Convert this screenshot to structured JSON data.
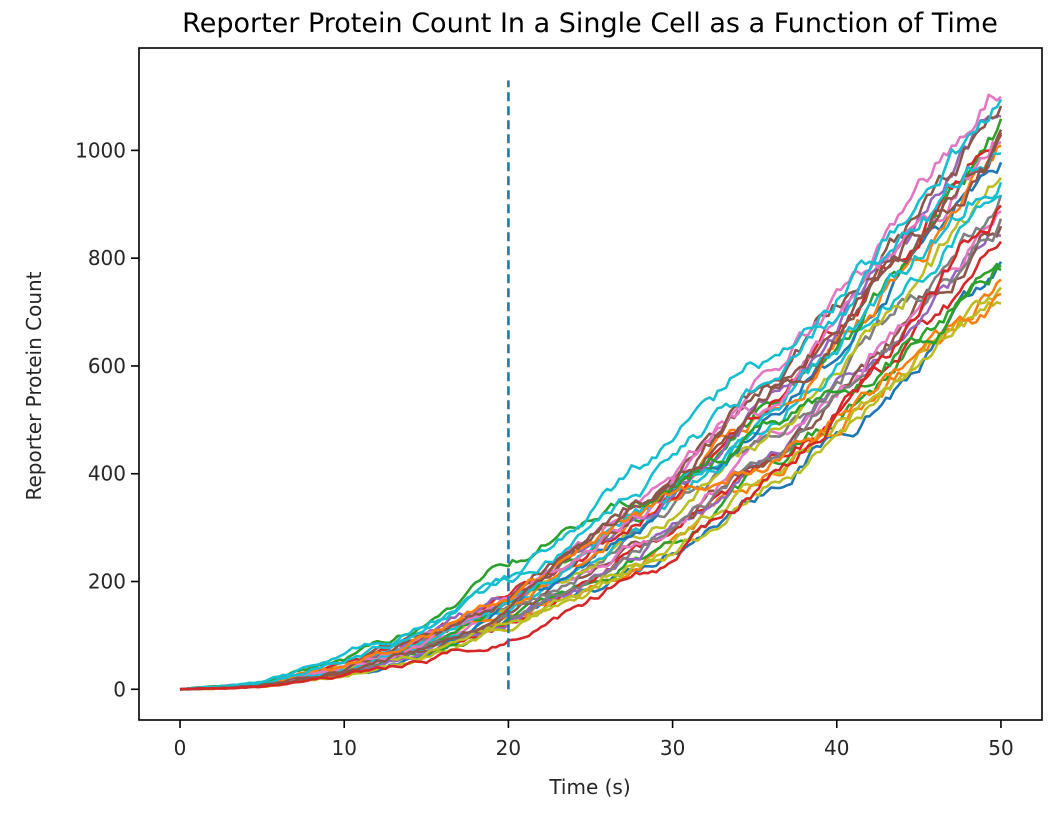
{
  "chart_data": {
    "type": "line",
    "title": "Reporter Protein Count In a Single Cell as a Function of Time",
    "xlabel": "Time (s)",
    "ylabel": "Reporter Protein Count",
    "xlim": [
      -2.5,
      52.5
    ],
    "ylim": [
      -57,
      1190
    ],
    "xticks": [
      0,
      10,
      20,
      30,
      40,
      50
    ],
    "xtick_labels": [
      "0",
      "10",
      "20",
      "30",
      "40",
      "50"
    ],
    "yticks": [
      0,
      200,
      400,
      600,
      800,
      1000
    ],
    "ytick_labels": [
      "0",
      "200",
      "400",
      "600",
      "800",
      "1000"
    ],
    "grid": false,
    "legend": "none",
    "x": [
      0,
      5,
      10,
      15,
      20,
      25,
      30,
      35,
      40,
      45,
      50
    ],
    "vline": {
      "x": 20,
      "y_range": [
        0,
        1130
      ],
      "style": "dashed",
      "color": "#1f77b4"
    },
    "series": [
      {
        "values": [
          0,
          6,
          29,
          67,
          120,
          187,
          270,
          367,
          480,
          607,
          750
        ],
        "color": "#1f77b4"
      },
      {
        "values": [
          0,
          6,
          30,
          69,
          124,
          193,
          278,
          378,
          494,
          626,
          772
        ],
        "color": "#ff7f0e"
      },
      {
        "values": [
          0,
          7,
          31,
          71,
          127,
          199,
          286,
          390,
          509,
          644,
          795
        ],
        "color": "#2ca02c"
      },
      {
        "values": [
          0,
          7,
          32,
          73,
          131,
          205,
          295,
          401,
          523,
          663,
          818
        ],
        "color": "#d62728"
      },
      {
        "values": [
          0,
          7,
          33,
          75,
          134,
          210,
          303,
          412,
          538,
          681,
          841
        ],
        "color": "#9467bd"
      },
      {
        "values": [
          0,
          7,
          34,
          77,
          138,
          216,
          311,
          424,
          553,
          700,
          864
        ],
        "color": "#8c564b"
      },
      {
        "values": [
          0,
          7,
          35,
          79,
          142,
          222,
          319,
          435,
          567,
          718,
          887
        ],
        "color": "#e377c2"
      },
      {
        "values": [
          0,
          7,
          36,
          81,
          145,
          227,
          327,
          446,
          582,
          737,
          910
        ],
        "color": "#7f7f7f"
      },
      {
        "values": [
          0,
          7,
          37,
          83,
          149,
          233,
          336,
          457,
          597,
          755,
          933
        ],
        "color": "#bcbd22"
      },
      {
        "values": [
          0,
          8,
          38,
          85,
          152,
          239,
          344,
          469,
          612,
          774,
          956
        ],
        "color": "#17becf"
      },
      {
        "values": [
          0,
          8,
          39,
          87,
          156,
          244,
          352,
          480,
          626,
          793,
          979
        ],
        "color": "#1f77b4"
      },
      {
        "values": [
          0,
          8,
          40,
          89,
          160,
          250,
          360,
          491,
          641,
          811,
          1002
        ],
        "color": "#ff7f0e"
      },
      {
        "values": [
          0,
          8,
          41,
          91,
          163,
          256,
          368,
          502,
          656,
          830,
          1025
        ],
        "color": "#2ca02c"
      },
      {
        "values": [
          0,
          8,
          42,
          94,
          167,
          262,
          377,
          514,
          670,
          848,
          1048
        ],
        "color": "#d62728"
      },
      {
        "values": [
          0,
          9,
          43,
          96,
          170,
          267,
          385,
          525,
          685,
          867,
          1071
        ],
        "color": "#9467bd"
      },
      {
        "values": [
          0,
          9,
          44,
          98,
          174,
          273,
          393,
          536,
          700,
          885,
          1094
        ],
        "color": "#8c564b"
      },
      {
        "values": [
          0,
          9,
          45,
          100,
          178,
          279,
          401,
          547,
          714,
          904,
          1117
        ],
        "color": "#e377c2"
      },
      {
        "values": [
          0,
          7,
          34,
          78,
          139,
          218,
          313,
          427,
          557,
          705,
          870
        ],
        "color": "#7f7f7f"
      },
      {
        "values": [
          0,
          6,
          30,
          68,
          122,
          190,
          274,
          373,
          487,
          617,
          762
        ],
        "color": "#bcbd22"
      },
      {
        "values": [
          0,
          6,
          29,
          66,
          117,
          183,
          264,
          359,
          469,
          594,
          733
        ],
        "color": "#bcbd22"
      },
      {
        "values": [
          0,
          8,
          39,
          88,
          158,
          247,
          356,
          485,
          634,
          802,
          990
        ],
        "color": "#17becf"
      },
      {
        "values": [
          0,
          8,
          41,
          92,
          164,
          257,
          370,
          505,
          659,
          834,
          1030
        ],
        "color": "#e377c2"
      },
      {
        "values": [
          0,
          9,
          40,
          98,
          176,
          283,
          400,
          545,
          690,
          860,
          1010
        ],
        "color": "#8c564b"
      },
      {
        "values": [
          0,
          10,
          47,
          103,
          183,
          262,
          345,
          428,
          520,
          620,
          720
        ],
        "color": "#ff7f0e"
      },
      {
        "values": [
          0,
          11,
          56,
          120,
          230,
          310,
          370,
          450,
          545,
          660,
          800
        ],
        "color": "#2ca02c"
      },
      {
        "values": [
          0,
          12,
          58,
          125,
          200,
          330,
          470,
          600,
          740,
          900,
          1085
        ],
        "color": "#17becf"
      },
      {
        "values": [
          0,
          11,
          55,
          118,
          190,
          290,
          420,
          560,
          700,
          860,
          1010
        ],
        "color": "#17becf"
      },
      {
        "values": [
          0,
          8,
          37,
          82,
          147,
          260,
          390,
          520,
          660,
          830,
          1000
        ],
        "color": "#8c564b"
      },
      {
        "values": [
          0,
          5,
          24,
          55,
          98,
          165,
          250,
          360,
          510,
          700,
          900
        ],
        "color": "#d62728"
      }
    ]
  }
}
